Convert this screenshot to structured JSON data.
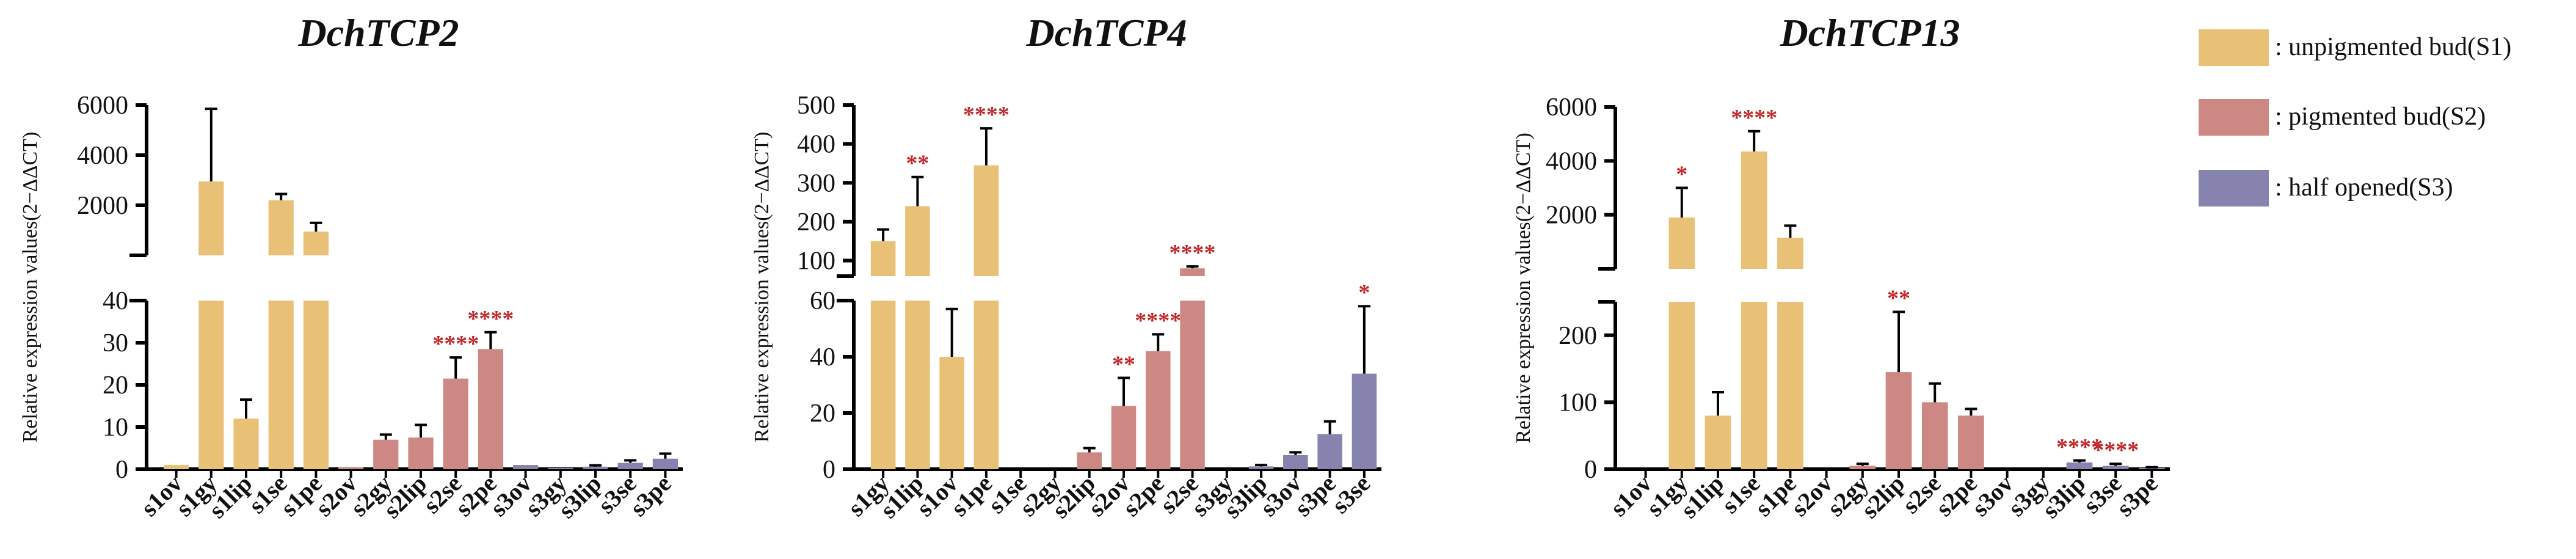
{
  "figure": {
    "legend": [
      {
        "label": ": unpigmented bud(S1)",
        "color": "#E8C177"
      },
      {
        "label": ": pigmented bud(S2)",
        "color": "#CE8884"
      },
      {
        "label": ": half opened(S3)",
        "color": "#8683AE"
      }
    ]
  },
  "chart_data": [
    {
      "type": "bar",
      "title": "DchTCP2",
      "ylabel": "Relative expression values(2−ΔΔCT)",
      "xlabel": "",
      "axis_break": true,
      "lower_range": [
        0,
        40
      ],
      "lower_ticks": [
        "0",
        "10",
        "20",
        "30",
        "40"
      ],
      "upper_range": [
        0,
        6000
      ],
      "upper_ticks": [
        "2000",
        "4000",
        "6000"
      ],
      "categories": [
        "s1ov",
        "s1gy",
        "s1lip",
        "s1se",
        "s1pe",
        "s2ov",
        "s2gy",
        "s2lip",
        "s2se",
        "s2pe",
        "s3ov",
        "s3gy",
        "s3lip",
        "s3se",
        "s3pe"
      ],
      "values": [
        1,
        2950,
        12,
        2200,
        950,
        0.5,
        7,
        7.5,
        21.5,
        28.5,
        1,
        0.3,
        0.6,
        1.5,
        2.5
      ],
      "errors": [
        0,
        2900,
        4.5,
        250,
        350,
        0,
        1.2,
        3,
        5,
        4,
        0,
        0,
        0.3,
        0.6,
        1.2
      ],
      "stages": [
        "S1",
        "S1",
        "S1",
        "S1",
        "S1",
        "S2",
        "S2",
        "S2",
        "S2",
        "S2",
        "S3",
        "S3",
        "S3",
        "S3",
        "S3"
      ],
      "significance": [
        "",
        "",
        "",
        "",
        "",
        "",
        "",
        "",
        "****",
        "****",
        "",
        "",
        "",
        "",
        ""
      ]
    },
    {
      "type": "bar",
      "title": "DchTCP4",
      "ylabel": "Relative expression values(2−ΔΔCT)",
      "xlabel": "",
      "axis_break": true,
      "lower_range": [
        0,
        60
      ],
      "lower_ticks": [
        "0",
        "20",
        "40",
        "60"
      ],
      "upper_range": [
        60,
        500
      ],
      "upper_ticks": [
        "100",
        "200",
        "300",
        "400",
        "500"
      ],
      "categories": [
        "s1gy",
        "s1lip",
        "s1ov",
        "s1pe",
        "s1se",
        "s2gy",
        "s2lip",
        "s2ov",
        "s2pe",
        "s2se",
        "s3gy",
        "s3lip",
        "s3ov",
        "s3pe",
        "s3se"
      ],
      "values": [
        150,
        240,
        40,
        345,
        0,
        0,
        6,
        22.5,
        42,
        80,
        0,
        1,
        5,
        12.5,
        34
      ],
      "errors": [
        30,
        75,
        17,
        95,
        0,
        0,
        1.5,
        10,
        6,
        5,
        0,
        0.5,
        1,
        4.5,
        24
      ],
      "stages": [
        "S1",
        "S1",
        "S1",
        "S1",
        "S1",
        "S2",
        "S2",
        "S2",
        "S2",
        "S2",
        "S3",
        "S3",
        "S3",
        "S3",
        "S3"
      ],
      "significance": [
        "",
        "**",
        "",
        "****",
        "",
        "",
        "",
        "**",
        "****",
        "****",
        "",
        "",
        "",
        "",
        "*"
      ]
    },
    {
      "type": "bar",
      "title": "DchTCP13",
      "ylabel": "Relative expression values(2−ΔΔCT)",
      "xlabel": "",
      "axis_break": true,
      "lower_range": [
        0,
        250
      ],
      "lower_ticks": [
        "0",
        "100",
        "200"
      ],
      "upper_range": [
        0,
        6000
      ],
      "upper_ticks": [
        "2000",
        "4000",
        "6000"
      ],
      "categories": [
        "s1ov",
        "s1gy",
        "s1lip",
        "s1se",
        "s1pe",
        "s2ov",
        "s2gy",
        "s2lip",
        "s2se",
        "s2pe",
        "s3ov",
        "s3gy",
        "s3lip",
        "s3se",
        "s3pe"
      ],
      "values": [
        0,
        1900,
        80,
        4350,
        1150,
        0,
        5,
        145,
        100,
        80,
        0,
        0,
        10,
        5,
        2
      ],
      "errors": [
        0,
        1100,
        35,
        750,
        450,
        0,
        3,
        90,
        28,
        10,
        0,
        0,
        3,
        3,
        1
      ],
      "stages": [
        "S1",
        "S1",
        "S1",
        "S1",
        "S1",
        "S2",
        "S2",
        "S2",
        "S2",
        "S2",
        "S3",
        "S3",
        "S3",
        "S3",
        "S3"
      ],
      "significance": [
        "",
        "*",
        "",
        "****",
        "",
        "",
        "",
        "**",
        "",
        "",
        "",
        "",
        "****",
        "****",
        ""
      ]
    }
  ]
}
